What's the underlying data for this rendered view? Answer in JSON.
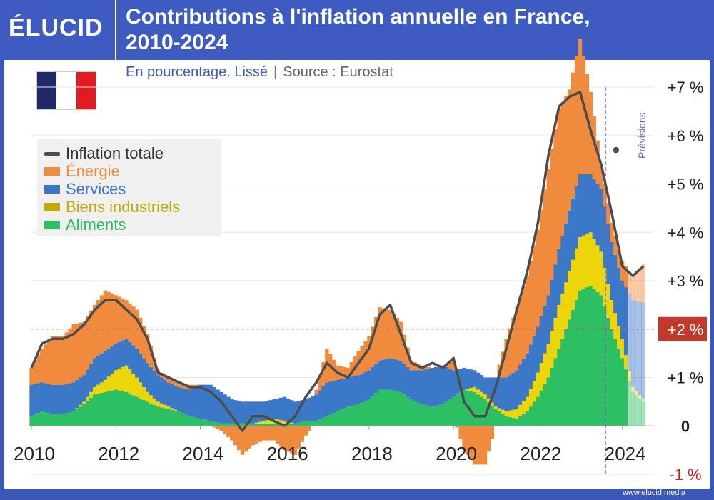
{
  "header": {
    "logo": "ÉLUCID",
    "title_line1": "Contributions à l'inflation annuelle en France,",
    "title_line2": "2010-2024",
    "subtitle_main": "En pourcentage. Lissé",
    "subtitle_sep": "|",
    "subtitle_source": "Source : Eurostat"
  },
  "footer": {
    "site": "www.elucid.media"
  },
  "colors": {
    "header_bg": "#3d5bc0",
    "energie": "#f08a3c",
    "services": "#3b78c8",
    "biens": "#ecd60a",
    "aliments": "#2cc063",
    "total_line": "#4d4d4d",
    "reference": "#c0392b",
    "previsions": "#7b68c8"
  },
  "legend": {
    "items": [
      {
        "label": "Inflation totale",
        "color": "#4d4d4d",
        "kind": "line"
      },
      {
        "label": "Énergie",
        "color": "#f08a3c",
        "kind": "bar"
      },
      {
        "label": "Services",
        "color": "#3b78c8",
        "kind": "bar"
      },
      {
        "label": "Biens industriels",
        "color": "#c3a90a",
        "kind": "bar"
      },
      {
        "label": "Aliments",
        "color": "#2cc063",
        "kind": "bar"
      }
    ]
  },
  "chart_data": {
    "type": "area",
    "title": "Contributions à l'inflation annuelle en France, 2010-2024",
    "subtitle": "En pourcentage. Lissé",
    "source": "Source : Eurostat",
    "xlim": [
      2010,
      2024.75
    ],
    "ylim": [
      -1,
      7
    ],
    "x_ticks": [
      2010,
      2012,
      2014,
      2016,
      2018,
      2020,
      2022,
      2024
    ],
    "x_tick_labels": [
      "2010",
      "2012",
      "2014",
      "2016",
      "2018",
      "2020",
      "2022",
      "2024"
    ],
    "y_ticks": [
      7,
      6,
      5,
      4,
      3,
      2,
      1,
      0,
      -1
    ],
    "y_tick_labels": [
      "+7 %",
      "+6 %",
      "+5 %",
      "+4 %",
      "+3 %",
      "+2 %",
      "+1 %",
      "0",
      "-1 %"
    ],
    "reference_line": {
      "value": 2,
      "label": "+2 %"
    },
    "forecast": {
      "start": 2023.6,
      "label": "Prévisions"
    },
    "x": [
      2010.0,
      2010.25,
      2010.5,
      2010.75,
      2011.0,
      2011.25,
      2011.5,
      2011.75,
      2012.0,
      2012.25,
      2012.5,
      2012.75,
      2013.0,
      2013.25,
      2013.5,
      2013.75,
      2014.0,
      2014.25,
      2014.5,
      2014.75,
      2015.0,
      2015.25,
      2015.5,
      2015.75,
      2016.0,
      2016.25,
      2016.5,
      2016.75,
      2017.0,
      2017.25,
      2017.5,
      2017.75,
      2018.0,
      2018.25,
      2018.5,
      2018.75,
      2019.0,
      2019.25,
      2019.5,
      2019.75,
      2020.0,
      2020.25,
      2020.5,
      2020.75,
      2021.0,
      2021.25,
      2021.5,
      2021.75,
      2022.0,
      2022.25,
      2022.5,
      2022.75,
      2023.0,
      2023.25,
      2023.5,
      2023.75,
      2024.0,
      2024.25,
      2024.5
    ],
    "series": [
      {
        "name": "Aliments",
        "values": [
          0.2,
          0.3,
          0.25,
          0.25,
          0.3,
          0.45,
          0.65,
          0.7,
          0.75,
          0.7,
          0.6,
          0.5,
          0.4,
          0.35,
          0.3,
          0.2,
          0.15,
          0.1,
          0.05,
          0.05,
          0.05,
          0.05,
          0.05,
          0.05,
          0.05,
          0.05,
          0.1,
          0.1,
          0.2,
          0.3,
          0.4,
          0.45,
          0.55,
          0.75,
          0.75,
          0.7,
          0.55,
          0.45,
          0.4,
          0.45,
          0.6,
          0.75,
          0.7,
          0.55,
          0.35,
          0.2,
          0.15,
          0.3,
          0.6,
          1.0,
          1.6,
          2.2,
          2.8,
          2.9,
          2.7,
          2.0,
          1.4,
          0.7,
          0.5
        ]
      },
      {
        "name": "Biens industriels",
        "values": [
          0.0,
          0.0,
          0.0,
          0.0,
          0.0,
          0.05,
          0.15,
          0.25,
          0.4,
          0.55,
          0.4,
          0.2,
          0.1,
          0.05,
          0.0,
          0.0,
          0.0,
          0.0,
          0.0,
          0.0,
          0.0,
          0.0,
          0.05,
          0.1,
          0.05,
          0.0,
          0.0,
          0.0,
          0.0,
          0.0,
          0.0,
          0.0,
          0.0,
          0.0,
          0.0,
          0.0,
          0.0,
          0.0,
          0.0,
          0.0,
          0.0,
          0.0,
          0.1,
          0.1,
          0.05,
          0.1,
          0.2,
          0.3,
          0.5,
          0.7,
          0.9,
          1.0,
          1.1,
          1.1,
          0.9,
          0.6,
          0.4,
          0.1,
          0.05
        ]
      },
      {
        "name": "Services",
        "values": [
          0.65,
          0.6,
          0.6,
          0.6,
          0.6,
          0.55,
          0.6,
          0.6,
          0.55,
          0.55,
          0.6,
          0.6,
          0.55,
          0.5,
          0.5,
          0.55,
          0.7,
          0.75,
          0.65,
          0.5,
          0.45,
          0.45,
          0.4,
          0.4,
          0.5,
          0.45,
          0.45,
          0.55,
          0.7,
          0.65,
          0.6,
          0.6,
          0.6,
          0.6,
          0.65,
          0.65,
          0.6,
          0.7,
          0.8,
          0.8,
          0.55,
          0.45,
          0.35,
          0.35,
          0.6,
          0.7,
          0.8,
          0.9,
          0.95,
          1.0,
          1.15,
          1.25,
          1.3,
          1.2,
          1.3,
          1.2,
          1.2,
          1.8,
          2.0
        ]
      },
      {
        "name": "Énergie",
        "values": [
          0.35,
          0.7,
          1.0,
          1.0,
          1.2,
          1.1,
          1.1,
          1.25,
          1.0,
          0.8,
          0.8,
          0.6,
          0.1,
          0.1,
          0.1,
          0.1,
          0.0,
          0.0,
          -0.1,
          -0.3,
          -0.6,
          -0.4,
          -0.3,
          -0.3,
          -0.5,
          -0.6,
          -0.2,
          0.1,
          0.7,
          0.3,
          0.2,
          0.5,
          0.7,
          1.1,
          1.0,
          0.8,
          0.2,
          0.1,
          0.0,
          0.0,
          0.2,
          -0.5,
          -0.8,
          -0.8,
          0.0,
          0.8,
          1.3,
          1.6,
          2.0,
          2.6,
          2.9,
          2.5,
          2.8,
          1.7,
          0.5,
          0.4,
          0.4,
          0.5,
          0.8
        ]
      },
      {
        "name": "Inflation totale",
        "values": [
          1.2,
          1.7,
          1.8,
          1.8,
          1.9,
          2.1,
          2.4,
          2.6,
          2.6,
          2.4,
          2.2,
          1.8,
          1.1,
          1.0,
          0.9,
          0.8,
          0.8,
          0.7,
          0.5,
          0.2,
          -0.1,
          0.2,
          0.2,
          0.1,
          0.0,
          0.2,
          0.6,
          0.9,
          1.3,
          1.1,
          1.0,
          1.3,
          1.6,
          2.3,
          2.5,
          1.9,
          1.3,
          1.2,
          1.3,
          1.2,
          1.4,
          0.5,
          0.2,
          0.2,
          0.8,
          1.6,
          2.4,
          3.2,
          4.2,
          5.6,
          6.6,
          6.8,
          6.9,
          6.1,
          5.4,
          4.4,
          3.3,
          3.1,
          3.3
        ]
      }
    ],
    "annotations": [
      "Prévisions",
      "+2 %"
    ]
  }
}
